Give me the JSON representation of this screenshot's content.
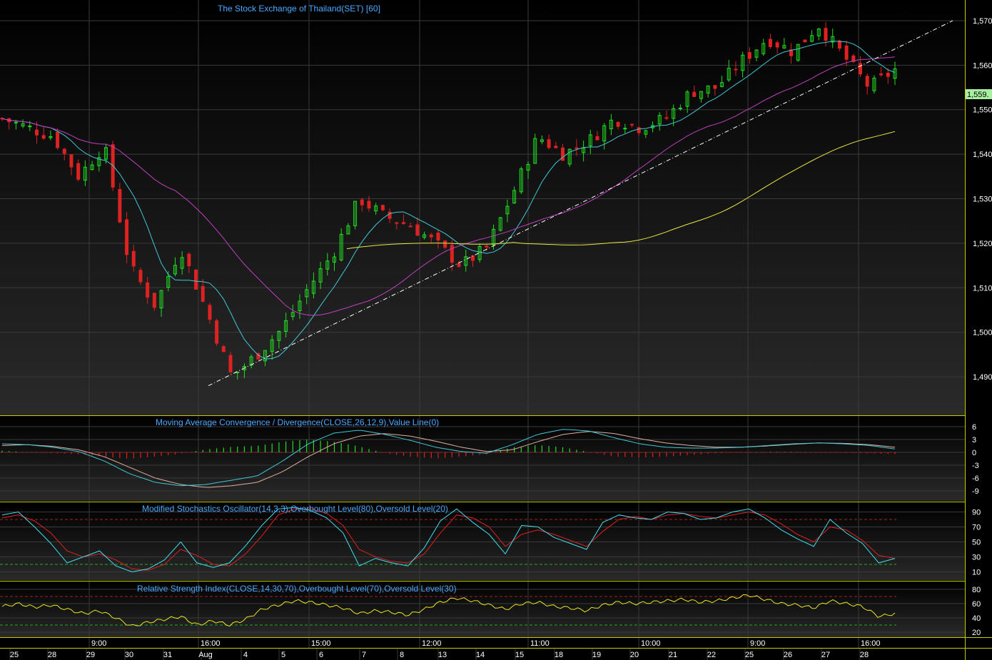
{
  "colors": {
    "background": "#000000",
    "panel_gradient_top": "#000000",
    "panel_gradient_bottom": "#2a2a2a",
    "grid": "#3a3a3a",
    "separator": "#c8c800",
    "axis_text": "#ffffff",
    "title": "#4aa8ff",
    "up_candle": "#22dd22",
    "down_candle": "#dd2222",
    "ma_fast": "#40c8d8",
    "ma_mid": "#c040c0",
    "ma_slow": "#e8e840",
    "trendline": "#ffffff",
    "macd_line": "#40c8d8",
    "macd_signal": "#e0b0a0",
    "stoch_k": "#40e0f0",
    "stoch_d": "#e02020",
    "rsi": "#e8e820",
    "overbought": "#aa2222",
    "oversold": "#22aa22",
    "last_price_bg": "#a8f0a0"
  },
  "panels": {
    "price": {
      "title": "The Stock Exchange of Thailand(SET) [60]",
      "last_price_label": "1,559."
    },
    "macd": {
      "title": "Moving Average Convergence / Divergence(CLOSE,26,12,9),Value Line(0)"
    },
    "stoch": {
      "title": "Modified Stochastics Oscillator(14,3,3),Overbought Level(80),Oversold Level(20)"
    },
    "rsi": {
      "title": "Relative Strength Index(CLOSE,14,30,70),Overbought Level(70),Oversold Level(30)"
    }
  },
  "chart_data": [
    {
      "type": "candlestick",
      "title": "The Stock Exchange of Thailand(SET) [60]",
      "y_ticks": [
        "1,570",
        "1,560",
        "1,550",
        "1,540",
        "1,530",
        "1,520",
        "1,510",
        "1,500",
        "1,490"
      ],
      "ylim": [
        1482,
        1574
      ],
      "last_price": 1559,
      "ohlc_key_points": [
        [
          1546,
          1549,
          1544,
          1548
        ],
        [
          1548,
          1549,
          1545,
          1546
        ],
        [
          1546,
          1547,
          1542,
          1544
        ],
        [
          1546,
          1547,
          1532,
          1535
        ],
        [
          1537,
          1547,
          1535,
          1542
        ],
        [
          1538,
          1542,
          1510,
          1515
        ],
        [
          1516,
          1520,
          1500,
          1506
        ],
        [
          1508,
          1523,
          1504,
          1519
        ],
        [
          1517,
          1519,
          1502,
          1505
        ],
        [
          1504,
          1505,
          1486,
          1490
        ],
        [
          1487,
          1497,
          1486,
          1495
        ],
        [
          1494,
          1503,
          1492,
          1501
        ],
        [
          1500,
          1512,
          1496,
          1510
        ],
        [
          1511,
          1520,
          1509,
          1518
        ],
        [
          1519,
          1532,
          1518,
          1530
        ],
        [
          1530,
          1532,
          1524,
          1526
        ],
        [
          1526,
          1532,
          1522,
          1524
        ],
        [
          1525,
          1526,
          1517,
          1520
        ],
        [
          1519,
          1523,
          1512,
          1515
        ],
        [
          1514,
          1522,
          1510,
          1519
        ],
        [
          1520,
          1533,
          1519,
          1531
        ],
        [
          1531,
          1545,
          1530,
          1544
        ],
        [
          1545,
          1552,
          1536,
          1540
        ],
        [
          1540,
          1545,
          1538,
          1543
        ],
        [
          1541,
          1550,
          1538,
          1548
        ],
        [
          1548,
          1552,
          1543,
          1546
        ],
        [
          1547,
          1550,
          1543,
          1548
        ],
        [
          1549,
          1555,
          1547,
          1554
        ],
        [
          1553,
          1556,
          1550,
          1555
        ],
        [
          1555,
          1562,
          1553,
          1561
        ],
        [
          1562,
          1568,
          1560,
          1566
        ],
        [
          1566,
          1568,
          1561,
          1563
        ],
        [
          1565,
          1571,
          1563,
          1569
        ],
        [
          1568,
          1569,
          1561,
          1562
        ],
        [
          1562,
          1563,
          1553,
          1555
        ],
        [
          1555,
          1560,
          1553,
          1559
        ]
      ],
      "moving_averages": [
        "cyan",
        "magenta",
        "yellow"
      ],
      "trendline": "dash-dot, from the 1,488 low up to the upper right"
    },
    {
      "type": "macd",
      "title": "Moving Average Convergence / Divergence(CLOSE,26,12,9),Value Line(0)",
      "y_ticks": [
        "6",
        "3",
        "0",
        "-3",
        "-6",
        "-9"
      ],
      "ylim": [
        -11,
        8
      ],
      "macd": [
        2.0,
        1.8,
        1.2,
        0.2,
        -2.0,
        -5.0,
        -7.0,
        -7.8,
        -7.5,
        -6.5,
        -5.5,
        -2.0,
        2.0,
        4.5,
        5.2,
        4.2,
        2.8,
        1.2,
        0.2,
        -0.2,
        1.8,
        4.2,
        5.4,
        5.0,
        3.4,
        2.0,
        1.2,
        1.0,
        1.0,
        1.2,
        1.6,
        2.0,
        2.2,
        2.0,
        1.6,
        0.8
      ],
      "signal": [
        1.6,
        1.8,
        1.4,
        0.6,
        -1.0,
        -3.5,
        -6.0,
        -7.5,
        -8.2,
        -7.8,
        -7.0,
        -4.5,
        -1.0,
        2.0,
        3.8,
        4.4,
        3.8,
        2.6,
        1.2,
        0.2,
        0.6,
        2.5,
        4.2,
        4.9,
        4.4,
        3.2,
        2.2,
        1.6,
        1.2,
        1.2,
        1.5,
        1.9,
        2.2,
        2.1,
        1.8,
        1.2
      ],
      "histogram": [
        0.4,
        0.0,
        -0.2,
        -0.4,
        -1.0,
        -1.5,
        -1.0,
        -0.3,
        0.7,
        1.3,
        1.5,
        2.5,
        3.0,
        2.5,
        1.4,
        -0.2,
        -1.0,
        -1.4,
        -1.0,
        -0.4,
        1.2,
        1.7,
        1.2,
        0.1,
        -1.0,
        -1.2,
        -1.0,
        -0.6,
        -0.2,
        0.0,
        0.1,
        0.1,
        0.0,
        -0.1,
        -0.2,
        -0.4
      ]
    },
    {
      "type": "stochastic",
      "title": "Modified Stochastics Oscillator(14,3,3),Overbought Level(80),Oversold Level(20)",
      "y_ticks": [
        "90",
        "70",
        "50",
        "30",
        "10"
      ],
      "ylim": [
        0,
        100
      ],
      "overbought": 80,
      "oversold": 20,
      "k": [
        86,
        90,
        70,
        48,
        22,
        30,
        38,
        18,
        10,
        14,
        26,
        50,
        22,
        16,
        22,
        45,
        72,
        94,
        96,
        92,
        82,
        62,
        18,
        28,
        22,
        18,
        42,
        78,
        94,
        76,
        60,
        34,
        72,
        70,
        56,
        48,
        40,
        76,
        86,
        82,
        80,
        90,
        88,
        80,
        82,
        90,
        94,
        82,
        66,
        54,
        44,
        80,
        62,
        48,
        22,
        28
      ],
      "d": [
        82,
        86,
        78,
        62,
        38,
        30,
        34,
        26,
        14,
        12,
        20,
        40,
        32,
        20,
        18,
        34,
        58,
        86,
        94,
        94,
        88,
        72,
        40,
        30,
        24,
        22,
        34,
        62,
        86,
        82,
        70,
        44,
        60,
        66,
        60,
        52,
        44,
        64,
        80,
        84,
        80,
        86,
        88,
        84,
        82,
        86,
        90,
        86,
        74,
        60,
        50,
        70,
        66,
        52,
        32,
        28
      ]
    },
    {
      "type": "rsi",
      "title": "Relative Strength Index(CLOSE,14,30,70),Overbought Level(70),Oversold Level(30)",
      "y_ticks": [
        "80",
        "60",
        "40",
        "20"
      ],
      "ylim": [
        14,
        88
      ],
      "overbought": 70,
      "oversold": 30,
      "rsi": [
        56,
        60,
        55,
        58,
        52,
        46,
        50,
        40,
        28,
        34,
        38,
        42,
        30,
        36,
        30,
        38,
        52,
        58,
        64,
        62,
        58,
        54,
        46,
        50,
        48,
        44,
        52,
        62,
        68,
        64,
        58,
        52,
        60,
        62,
        56,
        54,
        50,
        58,
        62,
        60,
        62,
        64,
        66,
        62,
        64,
        68,
        72,
        66,
        60,
        58,
        54,
        64,
        60,
        56,
        42,
        46
      ]
    }
  ],
  "x_axis": {
    "time_labels": [
      {
        "text": "9:00"
      },
      {
        "text": "16:00"
      },
      {
        "text": "15:00"
      },
      {
        "text": "12:00"
      },
      {
        "text": "11:00"
      },
      {
        "text": "10:00"
      },
      {
        "text": "9:00"
      },
      {
        "text": "16:00"
      }
    ],
    "date_labels": [
      "25",
      "28",
      "29",
      "30",
      "31",
      "Aug",
      "4",
      "5",
      "6",
      "7",
      "8",
      "13",
      "14",
      "15",
      "18",
      "19",
      "20",
      "21",
      "22",
      "25",
      "26",
      "27",
      "28"
    ]
  }
}
